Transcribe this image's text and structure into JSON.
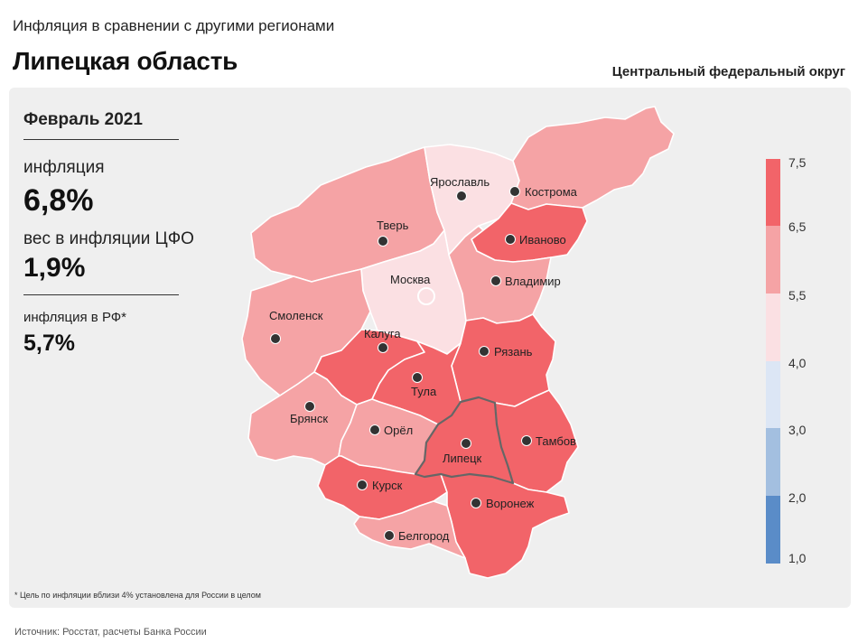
{
  "header": {
    "subtitle": "Инфляция в сравнении с другими регионами",
    "title": "Липецкая область",
    "district": "Центральный федеральный округ"
  },
  "info": {
    "period": "Февраль 2021",
    "inflation_label": "инфляция",
    "inflation_value": "6,8%",
    "weight_label": "вес в инфляции ЦФО",
    "weight_value": "1,9%",
    "rf_label": "инфляция  в РФ*",
    "rf_value": "5,7%"
  },
  "legend": {
    "ticks": [
      "7,5",
      "6,5",
      "5,5",
      "4,0",
      "3,0",
      "2,0",
      "1,0"
    ],
    "bins": [
      {
        "from": 6.5,
        "to": 7.5,
        "color": "#f26469"
      },
      {
        "from": 5.5,
        "to": 6.5,
        "color": "#f5a3a5"
      },
      {
        "from": 4.0,
        "to": 5.5,
        "color": "#fbe0e3"
      },
      {
        "from": 3.0,
        "to": 4.0,
        "color": "#dce6f5"
      },
      {
        "from": 2.0,
        "to": 3.0,
        "color": "#a3bfe0"
      },
      {
        "from": 1.0,
        "to": 2.0,
        "color": "#5a8cc8"
      }
    ]
  },
  "regions": [
    {
      "id": "yaroslavl",
      "label": "Ярославль",
      "color": "#fbe0e3"
    },
    {
      "id": "kostroma",
      "label": "Кострома",
      "color": "#f5a3a5"
    },
    {
      "id": "tver",
      "label": "Тверь",
      "color": "#f5a3a5"
    },
    {
      "id": "ivanovo",
      "label": "Иваново",
      "color": "#f26469"
    },
    {
      "id": "moscow",
      "label": "Москва",
      "color": "#fbe0e3"
    },
    {
      "id": "vladimir",
      "label": "Владимир",
      "color": "#f5a3a5"
    },
    {
      "id": "smolensk",
      "label": "Смоленск",
      "color": "#f5a3a5"
    },
    {
      "id": "kaluga",
      "label": "Калуга",
      "color": "#f26469"
    },
    {
      "id": "ryazan",
      "label": "Рязань",
      "color": "#f26469"
    },
    {
      "id": "tula",
      "label": "Тула",
      "color": "#f26469"
    },
    {
      "id": "bryansk",
      "label": "Брянск",
      "color": "#f5a3a5"
    },
    {
      "id": "orel",
      "label": "Орёл",
      "color": "#f5a3a5"
    },
    {
      "id": "tambov",
      "label": "Тамбов",
      "color": "#f26469"
    },
    {
      "id": "lipetsk",
      "label": "Липецк",
      "color": "#f26469"
    },
    {
      "id": "kursk",
      "label": "Курск",
      "color": "#f26469"
    },
    {
      "id": "voronezh",
      "label": "Воронеж",
      "color": "#f26469"
    },
    {
      "id": "belgorod",
      "label": "Белгород",
      "color": "#f5a3a5"
    }
  ],
  "footnote": "* Цель по инфляции вблизи 4% установлена для России в целом",
  "source": "Источник: Росстат, расчеты Банка России"
}
